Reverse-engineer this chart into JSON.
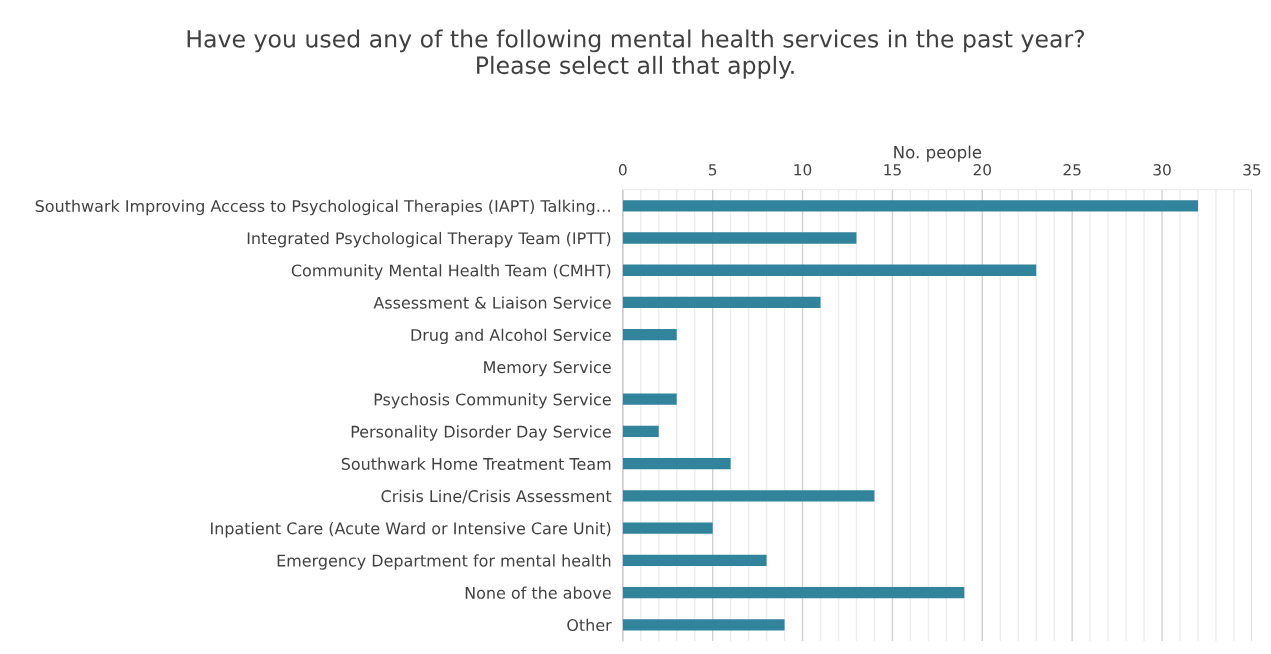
{
  "chart_data": {
    "type": "bar",
    "orientation": "horizontal",
    "title": "Have you used any of the following mental health services in the past year?\nPlease select all that apply.",
    "xlabel": "No. people",
    "categories": [
      "Southwark Improving Access to Psychological Therapies (IAPT) Talking…",
      "Integrated Psychological Therapy Team (IPTT)",
      "Community Mental Health Team (CMHT)",
      "Assessment & Liaison Service",
      "Drug and Alcohol Service",
      "Memory Service",
      "Psychosis Community Service",
      "Personality Disorder Day Service",
      "Southwark Home Treatment Team",
      "Crisis Line/Crisis Assessment",
      "Inpatient Care (Acute Ward or Intensive Care Unit)",
      "Emergency Department for mental health",
      "None of the above",
      "Other"
    ],
    "values": [
      32,
      13,
      23,
      11,
      3,
      0,
      3,
      2,
      6,
      14,
      5,
      8,
      19,
      9
    ],
    "color": "#31849b",
    "xlim": [
      0,
      35
    ],
    "xticks": [
      0,
      {
        "value": 1,
        "label": null
      },
      {
        "value": 2,
        "label": null
      },
      {
        "value": 3,
        "label": null
      },
      {
        "value": 4,
        "label": null
      },
      5,
      {
        "value": 6,
        "label": null
      },
      {
        "value": 7,
        "label": null
      },
      {
        "value": 8,
        "label": null
      },
      {
        "value": 9,
        "label": null
      },
      10,
      {
        "value": 11,
        "label": null
      },
      {
        "value": 12,
        "label": null
      },
      {
        "value": 13,
        "label": null
      },
      {
        "value": 14,
        "label": null
      },
      15,
      {
        "value": 16,
        "label": null
      },
      {
        "value": 17,
        "label": null
      },
      {
        "value": 18,
        "label": null
      },
      {
        "value": 19,
        "label": null
      },
      20,
      {
        "value": 21,
        "label": null
      },
      {
        "value": 22,
        "label": null
      },
      {
        "value": 23,
        "label": null
      },
      {
        "value": 24,
        "label": null
      },
      25,
      {
        "value": 26,
        "label": null
      },
      {
        "value": 27,
        "label": null
      },
      {
        "value": 28,
        "label": null
      },
      {
        "value": 29,
        "label": null
      },
      30,
      {
        "value": 31,
        "label": null
      },
      {
        "value": 32,
        "label": null
      },
      {
        "value": 33,
        "label": null
      },
      {
        "value": 34,
        "label": null
      },
      35
    ],
    "grid": "x"
  }
}
